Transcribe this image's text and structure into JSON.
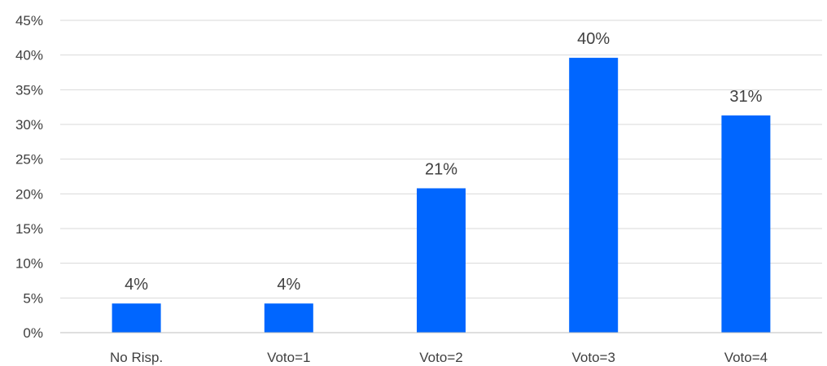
{
  "chart_data": {
    "type": "bar",
    "title": "",
    "xlabel": "",
    "ylabel": "",
    "categories": [
      "No Risp.",
      "Voto=1",
      "Voto=2",
      "Voto=3",
      "Voto=4"
    ],
    "values": [
      4.2,
      4.2,
      20.8,
      39.6,
      31.3
    ],
    "data_labels": [
      "4%",
      "4%",
      "21%",
      "40%",
      "31%"
    ],
    "ylim": [
      0,
      45
    ],
    "y_ticks": [
      0,
      5,
      10,
      15,
      20,
      25,
      30,
      35,
      40,
      45
    ],
    "y_tick_labels": [
      "0%",
      "5%",
      "10%",
      "15%",
      "20%",
      "25%",
      "30%",
      "35%",
      "40%",
      "45%"
    ],
    "grid": true,
    "legend": "none",
    "bar_color": "#0066ff"
  }
}
